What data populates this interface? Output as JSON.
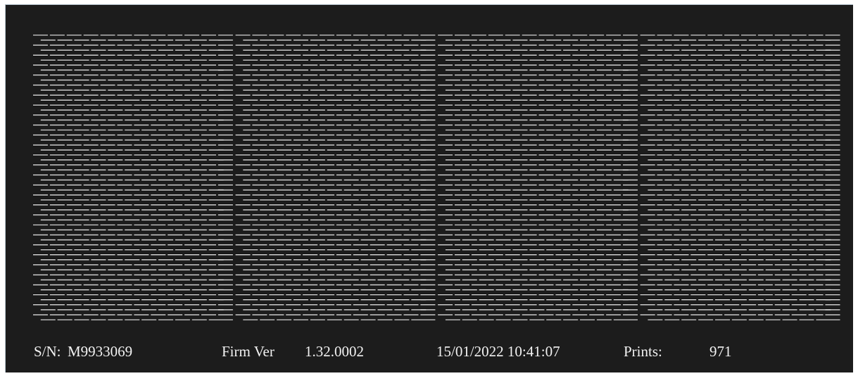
{
  "nozzle_check": {
    "serial_label": "S/N:",
    "serial_number": "M9933069",
    "firmware_label": "Firm Ver",
    "firmware_version": "1.32.0002",
    "datetime": "15/01/2022 10:41:07",
    "prints_label": "Prints:",
    "prints_count": "971",
    "pattern": {
      "line_color": "#ffffff",
      "background_color": "#1c1c1c",
      "rows": 58,
      "columns": 48,
      "blocks": 4,
      "missing_nozzles": 0
    }
  }
}
